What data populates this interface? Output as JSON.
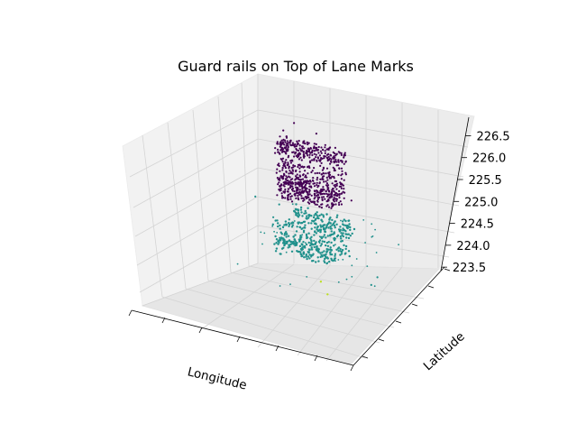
{
  "chart_data": {
    "type": "scatter",
    "projection": "3d",
    "title": "Guard rails on Top of Lane Marks",
    "xlabel": "Longitude",
    "ylabel": "Latitude",
    "zlabel": "",
    "xticklabels": [
      "",
      "",
      "",
      "",
      "",
      "",
      ""
    ],
    "yticklabels": [
      "",
      "",
      "",
      "",
      "",
      ""
    ],
    "zticks": [
      223.5,
      224.0,
      224.5,
      225.0,
      225.5,
      226.0,
      226.5
    ],
    "zticklabels": [
      "223.5",
      "224.0",
      "224.5",
      "225.0",
      "225.5",
      "226.0",
      "226.5"
    ],
    "xlim": [
      0,
      1
    ],
    "ylim": [
      0,
      1
    ],
    "zlim": [
      223.4,
      226.9
    ],
    "grid": true,
    "legend": "none",
    "colormap": "viridis",
    "colors": {
      "guard_rail": "#440154",
      "lane_mark": "#21918c",
      "other": "#bddf26"
    },
    "series": [
      {
        "class": "guard_rail",
        "color": "#440154",
        "clusters": [
          {
            "x": [
              0.23,
              0.53
            ],
            "y": [
              0.5,
              0.5
            ],
            "z": [
              226.05,
              226.35
            ]
          },
          {
            "x": [
              0.23,
              0.53
            ],
            "y": [
              0.5,
              0.5
            ],
            "z": [
              225.45,
              225.95
            ]
          },
          {
            "x": [
              0.25,
              0.53
            ],
            "y": [
              0.5,
              0.5
            ],
            "z": [
              225.2,
              225.55
            ]
          }
        ],
        "outliers": [
          {
            "x": 0.35,
            "y": 0.5,
            "z": 226.6
          },
          {
            "x": 0.45,
            "y": 0.5,
            "z": 226.7
          },
          {
            "x": 0.2,
            "y": 0.5,
            "z": 225.45
          },
          {
            "x": 0.5,
            "y": 0.5,
            "z": 226.5
          }
        ]
      },
      {
        "class": "lane_mark",
        "color": "#21918c",
        "clusters": [
          {
            "x": [
              0.2,
              0.48
            ],
            "y": [
              0.5,
              0.5
            ],
            "z": [
              224.7,
              225.05
            ]
          },
          {
            "x": [
              0.22,
              0.55
            ],
            "y": [
              0.5,
              0.5
            ],
            "z": [
              224.3,
              224.75
            ]
          },
          {
            "x": [
              0.28,
              0.55
            ],
            "y": [
              0.5,
              0.5
            ],
            "z": [
              224.1,
              224.4
            ]
          }
        ],
        "outliers": [
          {
            "x": 0.55,
            "y": 0.55,
            "z": 224.9
          },
          {
            "x": 0.6,
            "y": 0.6,
            "z": 224.5
          },
          {
            "x": 0.7,
            "y": 0.65,
            "z": 224.7
          },
          {
            "x": 0.05,
            "y": 0.4,
            "z": 224.3
          },
          {
            "x": 0.1,
            "y": 0.45,
            "z": 224.0
          }
        ]
      },
      {
        "class": "other",
        "color": "#bddf26",
        "points": [
          {
            "x": 0.3,
            "y": 0.45,
            "z": 223.6
          },
          {
            "x": 0.35,
            "y": 0.5,
            "z": 223.7
          }
        ]
      }
    ]
  }
}
